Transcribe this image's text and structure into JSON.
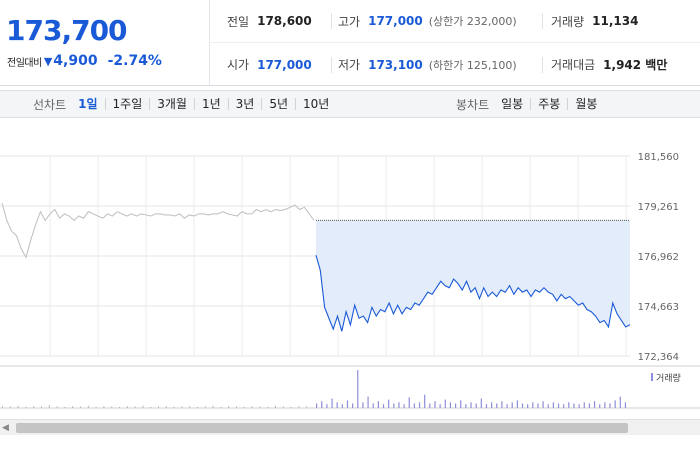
{
  "quote": {
    "price": "173,700",
    "change_label": "전일대비",
    "direction_icon": "down-triangle-icon",
    "change_amount": "4,900",
    "change_percent": "-2.74%",
    "price_color": "#1a5ad7",
    "stats": [
      [
        {
          "label": "전일",
          "value": "178,600",
          "color": "default"
        },
        {
          "label": "고가",
          "value": "177,000",
          "sub": "(상한가 232,000)",
          "color": "blue"
        },
        {
          "label": "거래량",
          "value": "11,134",
          "color": "default"
        }
      ],
      [
        {
          "label": "시가",
          "value": "177,000",
          "color": "blue"
        },
        {
          "label": "저가",
          "value": "173,100",
          "sub": "(하한가 125,100)",
          "color": "blue"
        },
        {
          "label": "거래대금",
          "value": "1,942 백만",
          "color": "default"
        }
      ]
    ]
  },
  "tabs": {
    "line_label": "선차트",
    "line_tabs": [
      "1일",
      "1주일",
      "3개월",
      "1년",
      "3년",
      "5년",
      "10년"
    ],
    "line_active": "1일",
    "candle_label": "봉차트",
    "candle_tabs": [
      "일봉",
      "주봉",
      "월봉"
    ]
  },
  "chart_data": {
    "type": "line",
    "y_ticks": [
      "181,560",
      "179,261",
      "176,962",
      "174,663",
      "172,364"
    ],
    "ylim": [
      172364,
      181560
    ],
    "previous_close": 178600,
    "colors": {
      "current": "#1a5ad7",
      "fill": "#e3ecfa",
      "previous_day": "#bdbdbd",
      "volume": "#8e8ed8"
    },
    "volume_legend": "거래량",
    "previous_day_prices": [
      179400,
      178600,
      178100,
      177900,
      177300,
      176900,
      177700,
      178400,
      179000,
      178600,
      178900,
      179100,
      178700,
      178900,
      178800,
      178600,
      178800,
      178700,
      179000,
      178900,
      178800,
      178700,
      178900,
      178800,
      179000,
      178900,
      178800,
      178900,
      178800,
      178900,
      178850,
      178800,
      178900,
      178900,
      178850,
      178850,
      178800,
      178900,
      178700,
      178850,
      178800,
      178900,
      178900,
      178850,
      178900,
      178900,
      179000,
      178900,
      178850,
      178800,
      179000,
      178900,
      178900,
      179100,
      179000,
      179100,
      179000,
      179100,
      179050,
      179100,
      179200,
      179300,
      179100,
      179200,
      178900,
      178600
    ],
    "current_prices": [
      177000,
      176300,
      174600,
      174100,
      173600,
      174200,
      173500,
      174400,
      173800,
      174700,
      174100,
      174200,
      173900,
      174600,
      174200,
      174500,
      174400,
      174800,
      174300,
      174700,
      174300,
      174600,
      174500,
      174800,
      174700,
      175000,
      175300,
      175200,
      175500,
      175800,
      175600,
      175500,
      175900,
      175700,
      175400,
      175800,
      175300,
      175500,
      175000,
      175500,
      175100,
      175300,
      175100,
      175400,
      175300,
      175600,
      175200,
      175500,
      175300,
      175400,
      175100,
      175400,
      175300,
      175500,
      175300,
      175200,
      174900,
      175200,
      175000,
      175100,
      174900,
      174700,
      174800,
      174500,
      174400,
      174200,
      173900,
      174000,
      173700,
      174800,
      174300,
      174000,
      173700,
      173800
    ],
    "volume_before": [
      0.05,
      0.04,
      0.06,
      0.03,
      0.05,
      0.04,
      0.08,
      0.04,
      0.03,
      0.05,
      0.04,
      0.06,
      0.03,
      0.05,
      0.04,
      0.03,
      0.05,
      0.04,
      0.06,
      0.03,
      0.04,
      0.05,
      0.03,
      0.04,
      0.05,
      0.03,
      0.04,
      0.06,
      0.03,
      0.05,
      0.04,
      0.03,
      0.05,
      0.04,
      0.03,
      0.06,
      0.04,
      0.03,
      0.05,
      0.04
    ],
    "volume_today": [
      0.12,
      0.18,
      0.1,
      0.25,
      0.15,
      0.1,
      0.2,
      0.12,
      1.0,
      0.15,
      0.3,
      0.12,
      0.18,
      0.1,
      0.22,
      0.12,
      0.15,
      0.1,
      0.28,
      0.12,
      0.15,
      0.35,
      0.12,
      0.18,
      0.1,
      0.22,
      0.15,
      0.12,
      0.2,
      0.1,
      0.15,
      0.12,
      0.25,
      0.1,
      0.15,
      0.12,
      0.18,
      0.1,
      0.15,
      0.2,
      0.12,
      0.1,
      0.15,
      0.12,
      0.18,
      0.1,
      0.15,
      0.12,
      0.1,
      0.15,
      0.12,
      0.1,
      0.15,
      0.12,
      0.18,
      0.1,
      0.15,
      0.12,
      0.2,
      0.3,
      0.15
    ]
  }
}
